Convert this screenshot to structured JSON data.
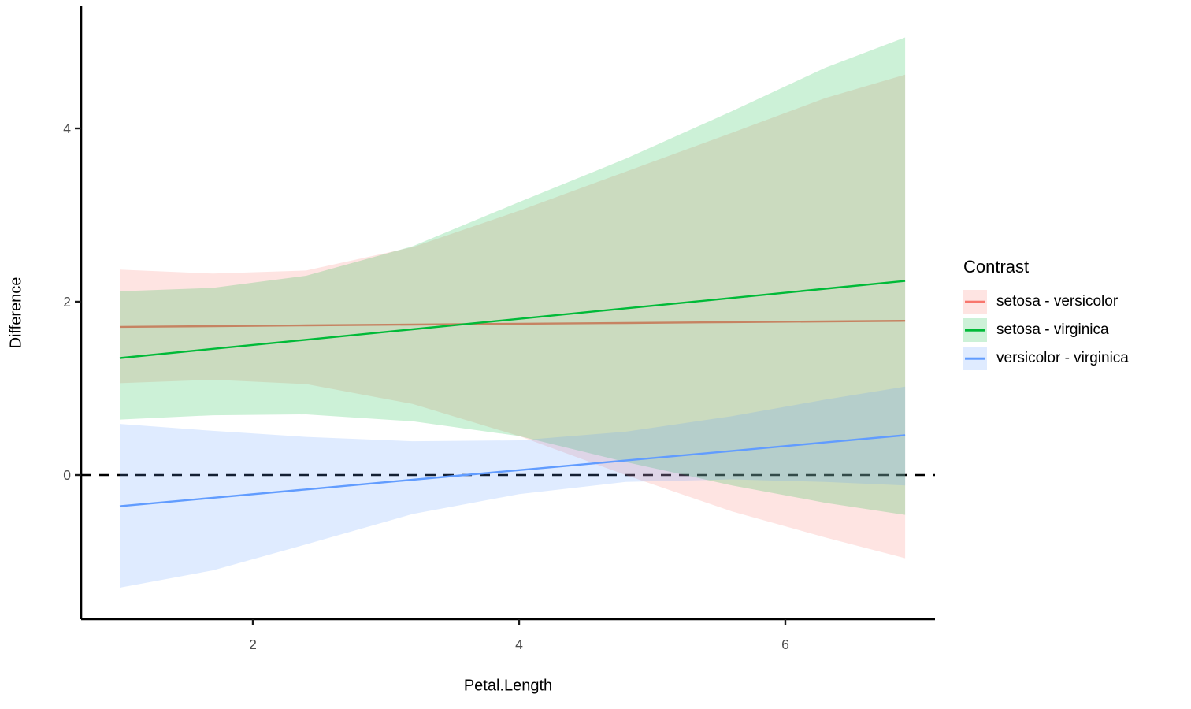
{
  "figure": {
    "background": "#FFFFFF",
    "text_color": "#000000",
    "tick_label_color": "#4D4D4D",
    "axis_line_color": "#000000"
  },
  "legend": {
    "title": "Contrast",
    "items": [
      {
        "label": "setosa - versicolor"
      },
      {
        "label": "setosa - virginica"
      },
      {
        "label": "versicolor - virginica"
      }
    ]
  },
  "chart_data": {
    "type": "line",
    "title": "",
    "xlabel": "Petal.Length",
    "ylabel": "Difference",
    "xlim": [
      0.71,
      7.12
    ],
    "ylim": [
      -1.72,
      5.41
    ],
    "x_ticks": [
      2,
      4,
      6
    ],
    "y_ticks": [
      0,
      2,
      4
    ],
    "grid": false,
    "legend_position": "right",
    "legend_title": "Contrast",
    "reference_line": {
      "y": 0,
      "style": "dashed",
      "color": "#000000"
    },
    "ribbon_opacity": 0.2,
    "x": [
      1,
      1.7,
      2.4,
      3.2,
      4,
      4.8,
      5.6,
      6.3,
      6.9
    ],
    "series": [
      {
        "name": "setosa - versicolor",
        "line_color": "#F8766D",
        "values": [
          1.71,
          1.718,
          1.727,
          1.736,
          1.746,
          1.755,
          1.765,
          1.773,
          1.78
        ],
        "ci_upper": [
          2.37,
          2.325,
          2.36,
          2.63,
          3.05,
          3.5,
          3.95,
          4.35,
          4.62
        ],
        "ci_lower": [
          1.06,
          1.1,
          1.05,
          0.82,
          0.45,
          0.0,
          -0.42,
          -0.72,
          -0.96
        ]
      },
      {
        "name": "setosa - virginica",
        "line_color": "#00BA38",
        "values": [
          1.35,
          1.456,
          1.561,
          1.682,
          1.803,
          1.924,
          2.044,
          2.15,
          2.24
        ],
        "ci_upper": [
          2.12,
          2.16,
          2.3,
          2.64,
          3.15,
          3.65,
          4.2,
          4.7,
          5.05
        ],
        "ci_lower": [
          0.64,
          0.69,
          0.7,
          0.62,
          0.45,
          0.15,
          -0.12,
          -0.32,
          -0.46
        ]
      },
      {
        "name": "versicolor - virginica",
        "line_color": "#619CFF",
        "values": [
          -0.36,
          -0.263,
          -0.166,
          -0.055,
          0.056,
          0.167,
          0.278,
          0.376,
          0.46
        ],
        "ci_upper": [
          0.59,
          0.51,
          0.44,
          0.39,
          0.4,
          0.5,
          0.68,
          0.87,
          1.02
        ],
        "ci_lower": [
          -1.3,
          -1.1,
          -0.8,
          -0.45,
          -0.22,
          -0.08,
          -0.05,
          -0.08,
          -0.12
        ]
      }
    ]
  }
}
